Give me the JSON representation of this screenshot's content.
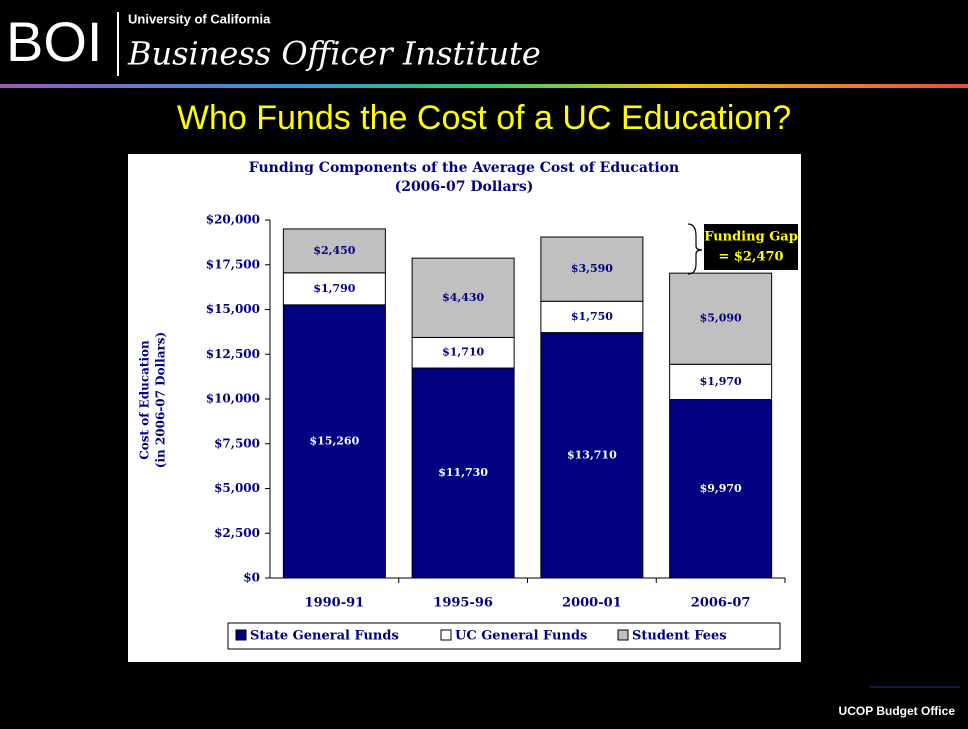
{
  "header": {
    "logo": "BOI",
    "org": "University of California",
    "name": "Business Officer Institute"
  },
  "slide_title": "Who Funds the Cost of a UC Education?",
  "footer": "UCOP Budget Office",
  "chart_data": {
    "type": "stacked_bar",
    "title": "Funding Components of the Average Cost of Education",
    "subtitle": "(2006-07 Dollars)",
    "ylabel": [
      "Cost of Education",
      "(in 2006-07 Dollars)"
    ],
    "categories": [
      "1990-91",
      "1995-96",
      "2000-01",
      "2006-07"
    ],
    "series": [
      {
        "name": "State General Funds",
        "color": "#000080",
        "values": [
          15260,
          11730,
          13710,
          9970
        ],
        "value_labels": [
          "$15,260",
          "$11,730",
          "$13,710",
          "$9,970"
        ]
      },
      {
        "name": "UC General Funds",
        "color": "#ffffff",
        "values": [
          1790,
          1710,
          1750,
          1970
        ],
        "value_labels": [
          "$1,790",
          "$1,710",
          "$1,750",
          "$1,970"
        ]
      },
      {
        "name": "Student Fees",
        "color": "#c0c0c0",
        "values": [
          2450,
          4430,
          3590,
          5090
        ],
        "value_labels": [
          "$2,450",
          "$4,430",
          "$3,590",
          "$5,090"
        ]
      }
    ],
    "ylim": [
      0,
      20000
    ],
    "yticks": [
      {
        "value": 0,
        "label": "$0"
      },
      {
        "value": 2500,
        "label": "$2,500"
      },
      {
        "value": 5000,
        "label": "$5,000"
      },
      {
        "value": 7500,
        "label": "$7,500"
      },
      {
        "value": 10000,
        "label": "$10,000"
      },
      {
        "value": 12500,
        "label": "$12,500"
      },
      {
        "value": 15000,
        "label": "$15,000"
      },
      {
        "value": 17500,
        "label": "$17,500"
      },
      {
        "value": 20000,
        "label": "$20,000"
      }
    ],
    "annotation": [
      "Funding Gap",
      "= $2,470"
    ],
    "legend": "bottom"
  }
}
